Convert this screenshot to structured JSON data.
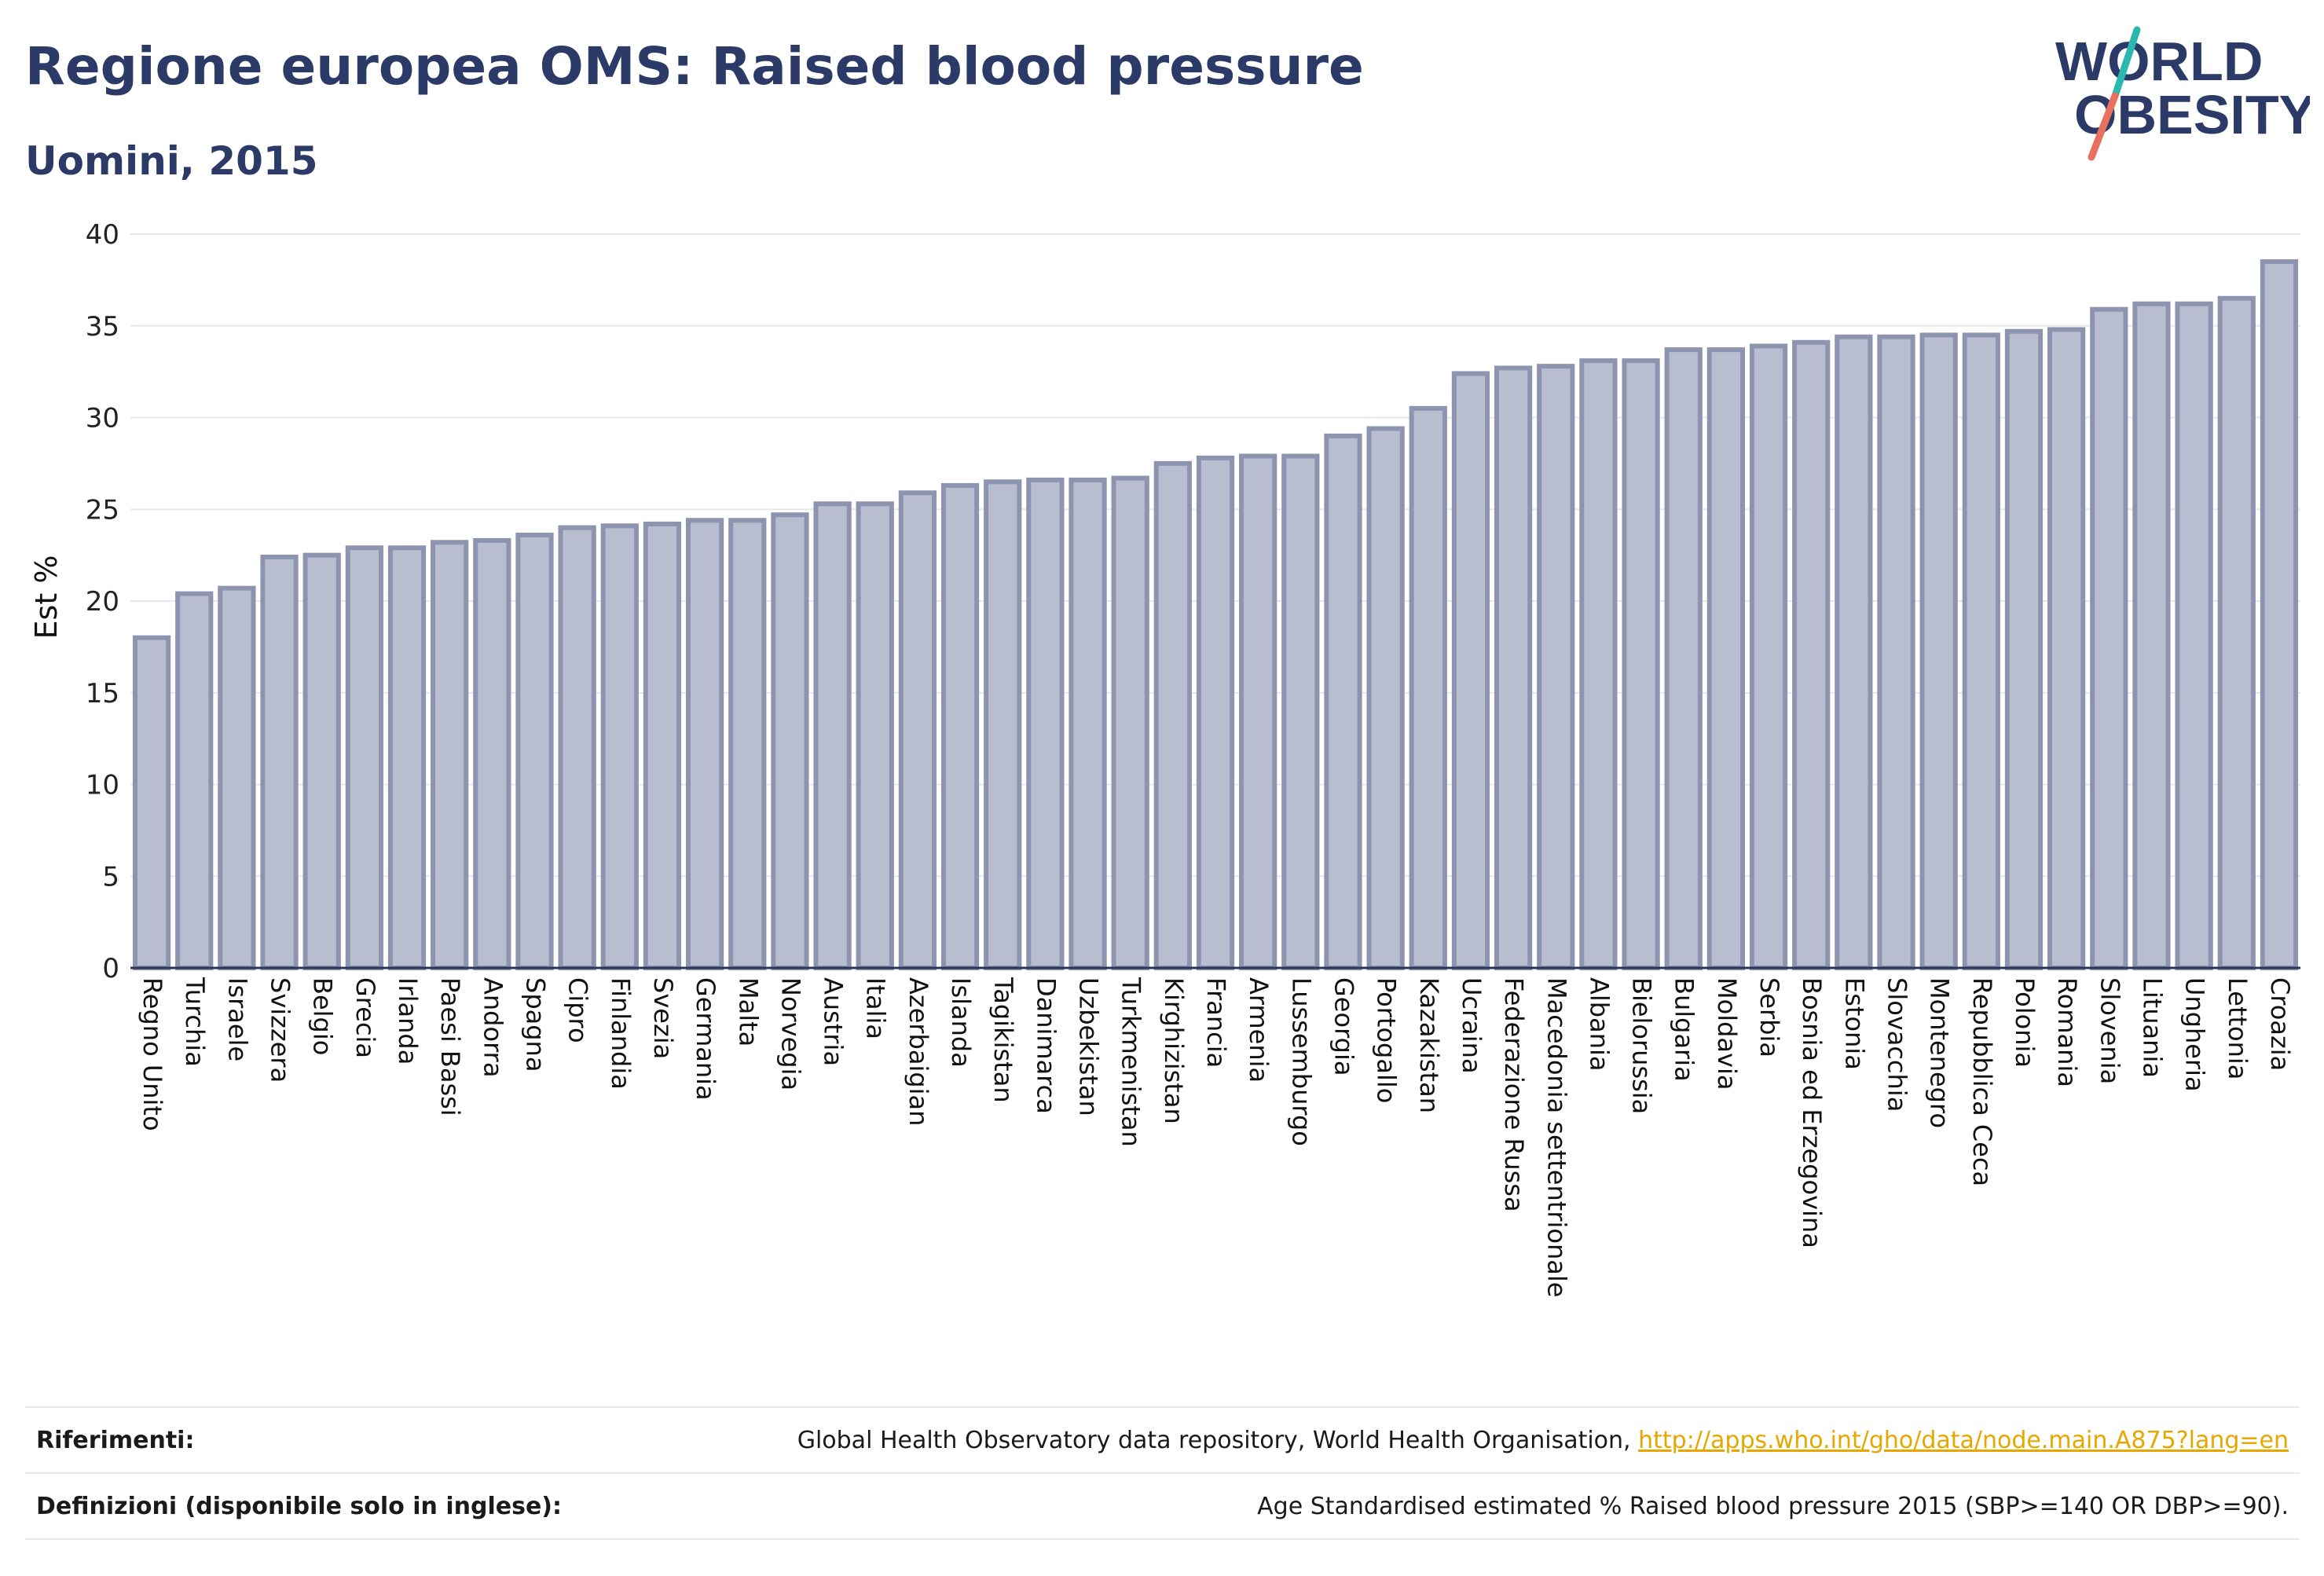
{
  "header": {
    "title": "Regione europea OMS: Raised blood pressure",
    "subtitle": "Uomini, 2015"
  },
  "logo": {
    "line1": "WORLD",
    "line2": "OBESITY",
    "colors": {
      "text": "#2b3a67",
      "slash_teal": "#2bb8b0",
      "slash_coral": "#e8705f"
    }
  },
  "chart_data": {
    "type": "bar",
    "title": "",
    "xlabel": "",
    "ylabel": "Est %",
    "ylim": [
      0,
      40
    ],
    "yticks": [
      0,
      5,
      10,
      15,
      20,
      25,
      30,
      35,
      40
    ],
    "grid": true,
    "bar_color": "#b8bdcf",
    "categories": [
      "Regno Unito",
      "Turchia",
      "Israele",
      "Svizzera",
      "Belgio",
      "Grecia",
      "Irlanda",
      "Paesi Bassi",
      "Andorra",
      "Spagna",
      "Cipro",
      "Finlandia",
      "Svezia",
      "Germania",
      "Malta",
      "Norvegia",
      "Austria",
      "Italia",
      "Azerbaigian",
      "Islanda",
      "Tagikistan",
      "Danimarca",
      "Uzbekistan",
      "Turkmenistan",
      "Kirghizistan",
      "Francia",
      "Armenia",
      "Lussemburgo",
      "Georgia",
      "Portogallo",
      "Kazakistan",
      "Ucraina",
      "Federazione Russa",
      "Macedonia settentrionale",
      "Albania",
      "Bielorussia",
      "Bulgaria",
      "Moldavia",
      "Serbia",
      "Bosnia ed Erzegovina",
      "Estonia",
      "Slovacchia",
      "Montenegro",
      "Repubblica Ceca",
      "Polonia",
      "Romania",
      "Slovenia",
      "Lituania",
      "Ungheria",
      "Lettonia",
      "Croazia"
    ],
    "values": [
      18.0,
      20.4,
      20.7,
      22.4,
      22.5,
      22.9,
      22.9,
      23.2,
      23.3,
      23.6,
      24.0,
      24.1,
      24.2,
      24.4,
      24.4,
      24.7,
      25.3,
      25.3,
      25.9,
      26.3,
      26.5,
      26.6,
      26.6,
      26.7,
      27.5,
      27.8,
      27.9,
      27.9,
      29.0,
      29.4,
      30.5,
      32.4,
      32.7,
      32.8,
      33.1,
      33.1,
      33.7,
      33.7,
      33.9,
      34.1,
      34.4,
      34.4,
      34.5,
      34.5,
      34.7,
      34.8,
      35.9,
      36.2,
      36.2,
      36.5,
      38.5
    ]
  },
  "footer": {
    "references_label": "Riferimenti:",
    "references_text": "Global Health Observatory data repository, World Health Organisation,",
    "references_link": "http://apps.who.int/gho/data/node.main.A875?lang=en",
    "definitions_label": "Definizioni (disponibile solo in inglese):",
    "definitions_text": "Age Standardised estimated % Raised blood pressure 2015 (SBP>=140 OR DBP>=90)."
  }
}
